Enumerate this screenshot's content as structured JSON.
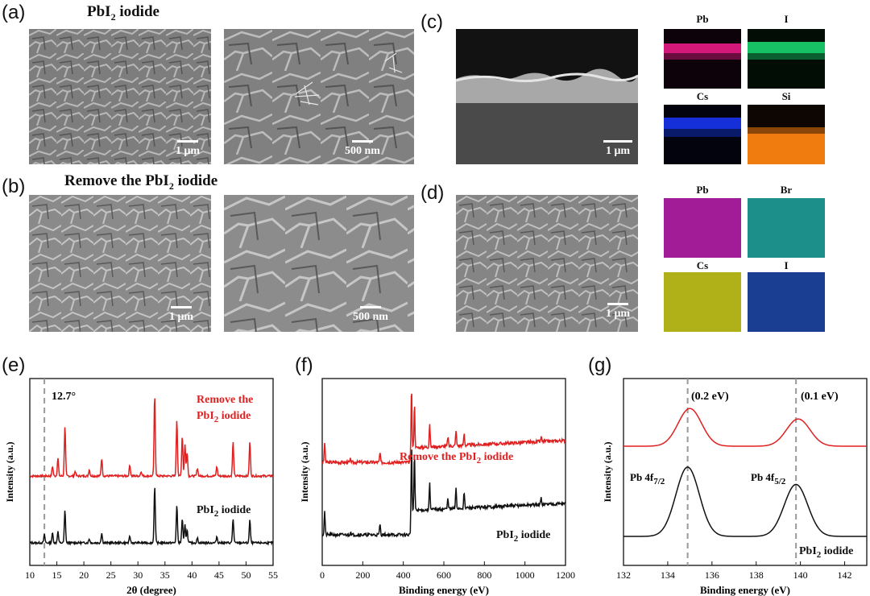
{
  "panels": {
    "a": {
      "label": "(a)",
      "title_prefix": "PbI",
      "title_sub": "2",
      "title_suffix": " iodide",
      "scale_left": "1 μm",
      "scale_right": "500 nm"
    },
    "b": {
      "label": "(b)",
      "title_prefix": "Remove the PbI",
      "title_sub": "2",
      "title_suffix": " iodide",
      "scale_left": "1 μm",
      "scale_right": "500 nm"
    },
    "c": {
      "label": "(c)",
      "scale": "1 μm",
      "maps": [
        "Pb",
        "I",
        "Cs",
        "Si"
      ]
    },
    "d": {
      "label": "(d)",
      "scale": "1 μm",
      "maps": [
        "Pb",
        "Br",
        "Cs",
        "I"
      ]
    },
    "e": {
      "label": "(e)"
    },
    "f": {
      "label": "(f)"
    },
    "g": {
      "label": "(g)"
    }
  },
  "colors": {
    "pb_c": "#d4187a",
    "i_c": "#17c064",
    "cs_c": "#1530d8",
    "si_c": "#f07c10",
    "pb_d": "#a21c98",
    "br_d": "#1c8f8a",
    "cs_d": "#b0b018",
    "i_d": "#1a3f92",
    "red_curve": "#e02020",
    "black_curve": "#111111",
    "dash": "#9a9a9a"
  },
  "chart_data": [
    {
      "panel": "e",
      "type": "line",
      "xlabel": "2θ (degree)",
      "ylabel": "Intensity (a.u.)",
      "xlim": [
        10,
        55
      ],
      "xticks": [
        "10",
        "15",
        "20",
        "25",
        "30",
        "35",
        "40",
        "45",
        "50",
        "55"
      ],
      "annotation": "12.7°",
      "dashed_line_x": 12.7,
      "series": [
        {
          "name": "Remove the PbI2 iodide",
          "label_prefix": "Remove the",
          "label_line2_prefix": "PbI",
          "label_line2_sub": "2",
          "label_line2_suffix": " iodide",
          "peaks": [
            [
              14.2,
              0.12
            ],
            [
              15.2,
              0.22
            ],
            [
              16.5,
              0.62
            ],
            [
              18.4,
              0.06
            ],
            [
              21.0,
              0.08
            ],
            [
              23.3,
              0.22
            ],
            [
              28.5,
              0.14
            ],
            [
              30.6,
              0.06
            ],
            [
              33.1,
              1.0
            ],
            [
              37.2,
              0.7
            ],
            [
              38.2,
              0.5
            ],
            [
              38.7,
              0.4
            ],
            [
              39.1,
              0.3
            ],
            [
              41.0,
              0.1
            ],
            [
              44.6,
              0.12
            ],
            [
              47.6,
              0.42
            ],
            [
              50.7,
              0.42
            ]
          ]
        },
        {
          "name": "PbI2 iodide",
          "label_prefix": "PbI",
          "label_sub": "2",
          "label_suffix": " iodide",
          "peaks": [
            [
              12.7,
              0.1
            ],
            [
              14.2,
              0.12
            ],
            [
              15.2,
              0.14
            ],
            [
              16.5,
              0.4
            ],
            [
              21.0,
              0.05
            ],
            [
              23.3,
              0.12
            ],
            [
              28.5,
              0.08
            ],
            [
              33.1,
              0.7
            ],
            [
              37.2,
              0.46
            ],
            [
              38.2,
              0.3
            ],
            [
              38.7,
              0.22
            ],
            [
              39.1,
              0.16
            ],
            [
              41.0,
              0.06
            ],
            [
              44.6,
              0.08
            ],
            [
              47.6,
              0.3
            ],
            [
              50.7,
              0.28
            ]
          ]
        }
      ]
    },
    {
      "panel": "f",
      "type": "line",
      "xlabel": "Binding energy (eV)",
      "ylabel": "Intensity (a.u.)",
      "xlim": [
        0,
        1200
      ],
      "xticks": [
        "0",
        "200",
        "400",
        "600",
        "800",
        "1000",
        "1200"
      ],
      "series": [
        {
          "name": "Remove the PbI2 iodide",
          "label_prefix": "Remove the PbI",
          "label_sub": "2",
          "label_suffix": " iodide",
          "peaks": [
            [
              12,
              0.25
            ],
            [
              140,
              0.04
            ],
            [
              285,
              0.12
            ],
            [
              440,
              0.85
            ],
            [
              455,
              0.55
            ],
            [
              530,
              0.3
            ],
            [
              620,
              0.12
            ],
            [
              660,
              0.2
            ],
            [
              700,
              0.15
            ],
            [
              1080,
              0.06
            ]
          ]
        },
        {
          "name": "PbI2 iodide",
          "label_prefix": "PbI",
          "label_sub": "2",
          "label_suffix": " iodide",
          "peaks": [
            [
              12,
              0.3
            ],
            [
              140,
              0.04
            ],
            [
              285,
              0.14
            ],
            [
              440,
              0.95
            ],
            [
              455,
              0.7
            ],
            [
              530,
              0.35
            ],
            [
              620,
              0.14
            ],
            [
              660,
              0.26
            ],
            [
              700,
              0.2
            ],
            [
              1080,
              0.08
            ]
          ]
        }
      ]
    },
    {
      "panel": "g",
      "type": "line",
      "xlabel": "Binding energy (eV)",
      "ylabel": "Intensity (a.u.)",
      "xlim": [
        132,
        143
      ],
      "xticks": [
        "132",
        "134",
        "136",
        "138",
        "140",
        "142"
      ],
      "dashed_lines_x": [
        134.9,
        139.8
      ],
      "annotations": [
        "(0.2 eV)",
        "(0.1 eV)"
      ],
      "peak_labels": [
        {
          "prefix": "Pb 4f",
          "sub": "7/2"
        },
        {
          "prefix": "Pb 4f",
          "sub": "5/2"
        }
      ],
      "series": [
        {
          "name": "Remove the PbI2 iodide",
          "peaks": [
            [
              135.0,
              0.9
            ],
            [
              139.9,
              0.65
            ]
          ]
        },
        {
          "name": "PbI2 iodide",
          "label_prefix": "PbI",
          "label_sub": "2",
          "label_suffix": " iodide",
          "peaks": [
            [
              134.9,
              1.0
            ],
            [
              139.8,
              0.75
            ]
          ]
        }
      ]
    }
  ]
}
